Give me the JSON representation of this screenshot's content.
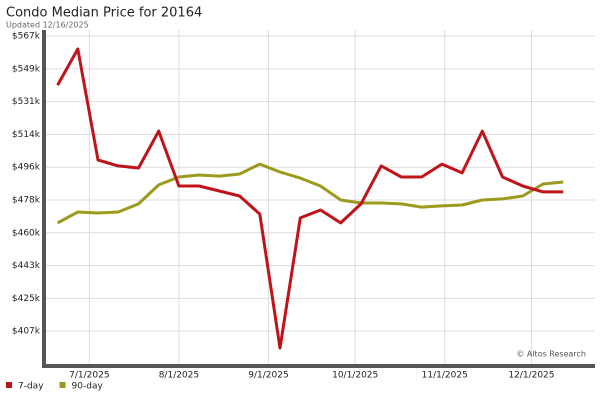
{
  "chart_data": {
    "type": "line",
    "title": "Condo Median Price for 20164",
    "subtitle": "Updated 12/16/2025",
    "watermark": "© Altos Research",
    "x": [
      "2025-06-20",
      "2025-06-27",
      "2025-07-04",
      "2025-07-11",
      "2025-07-18",
      "2025-07-25",
      "2025-08-01",
      "2025-08-08",
      "2025-08-15",
      "2025-08-22",
      "2025-08-29",
      "2025-09-05",
      "2025-09-12",
      "2025-09-19",
      "2025-09-26",
      "2025-10-03",
      "2025-10-10",
      "2025-10-17",
      "2025-10-24",
      "2025-10-31",
      "2025-11-07",
      "2025-11-14",
      "2025-11-21",
      "2025-11-28",
      "2025-12-05",
      "2025-12-12"
    ],
    "xlim": [
      "2025-06-16",
      "2025-12-23"
    ],
    "xticks": [
      {
        "value": "2025-07-01",
        "label": "7/1/2025"
      },
      {
        "value": "2025-08-01",
        "label": "8/1/2025"
      },
      {
        "value": "2025-09-01",
        "label": "9/1/2025"
      },
      {
        "value": "2025-10-01",
        "label": "10/1/2025"
      },
      {
        "value": "2025-11-01",
        "label": "11/1/2025"
      },
      {
        "value": "2025-12-01",
        "label": "12/1/2025"
      }
    ],
    "ylim": [
      389300,
      570400
    ],
    "yticks": [
      {
        "value": 407111,
        "label": "$407k"
      },
      {
        "value": 424889,
        "label": "$425k"
      },
      {
        "value": 442667,
        "label": "$443k"
      },
      {
        "value": 460444,
        "label": "$460k"
      },
      {
        "value": 478222,
        "label": "$478k"
      },
      {
        "value": 496000,
        "label": "$496k"
      },
      {
        "value": 513778,
        "label": "$514k"
      },
      {
        "value": 531556,
        "label": "$531k"
      },
      {
        "value": 549333,
        "label": "$549k"
      },
      {
        "value": 567111,
        "label": "$567k"
      }
    ],
    "grid": true,
    "series": [
      {
        "name": "7-day",
        "color": "#c0141b",
        "values": [
          540500,
          560100,
          499900,
          496700,
          495600,
          515600,
          485800,
          485800,
          483100,
          480400,
          470600,
          398000,
          468500,
          472800,
          465800,
          476100,
          496700,
          490700,
          490700,
          497700,
          492900,
          515600,
          490700,
          485800,
          482600,
          482600
        ]
      },
      {
        "name": "90-day",
        "color": "#9b9b1e",
        "values": [
          465800,
          471700,
          471200,
          471700,
          476100,
          486400,
          490700,
          491800,
          491200,
          492300,
          497700,
          493400,
          490100,
          485800,
          478200,
          476600,
          476600,
          476100,
          474400,
          475000,
          475500,
          478200,
          478800,
          480400,
          486900,
          488000
        ]
      }
    ]
  }
}
